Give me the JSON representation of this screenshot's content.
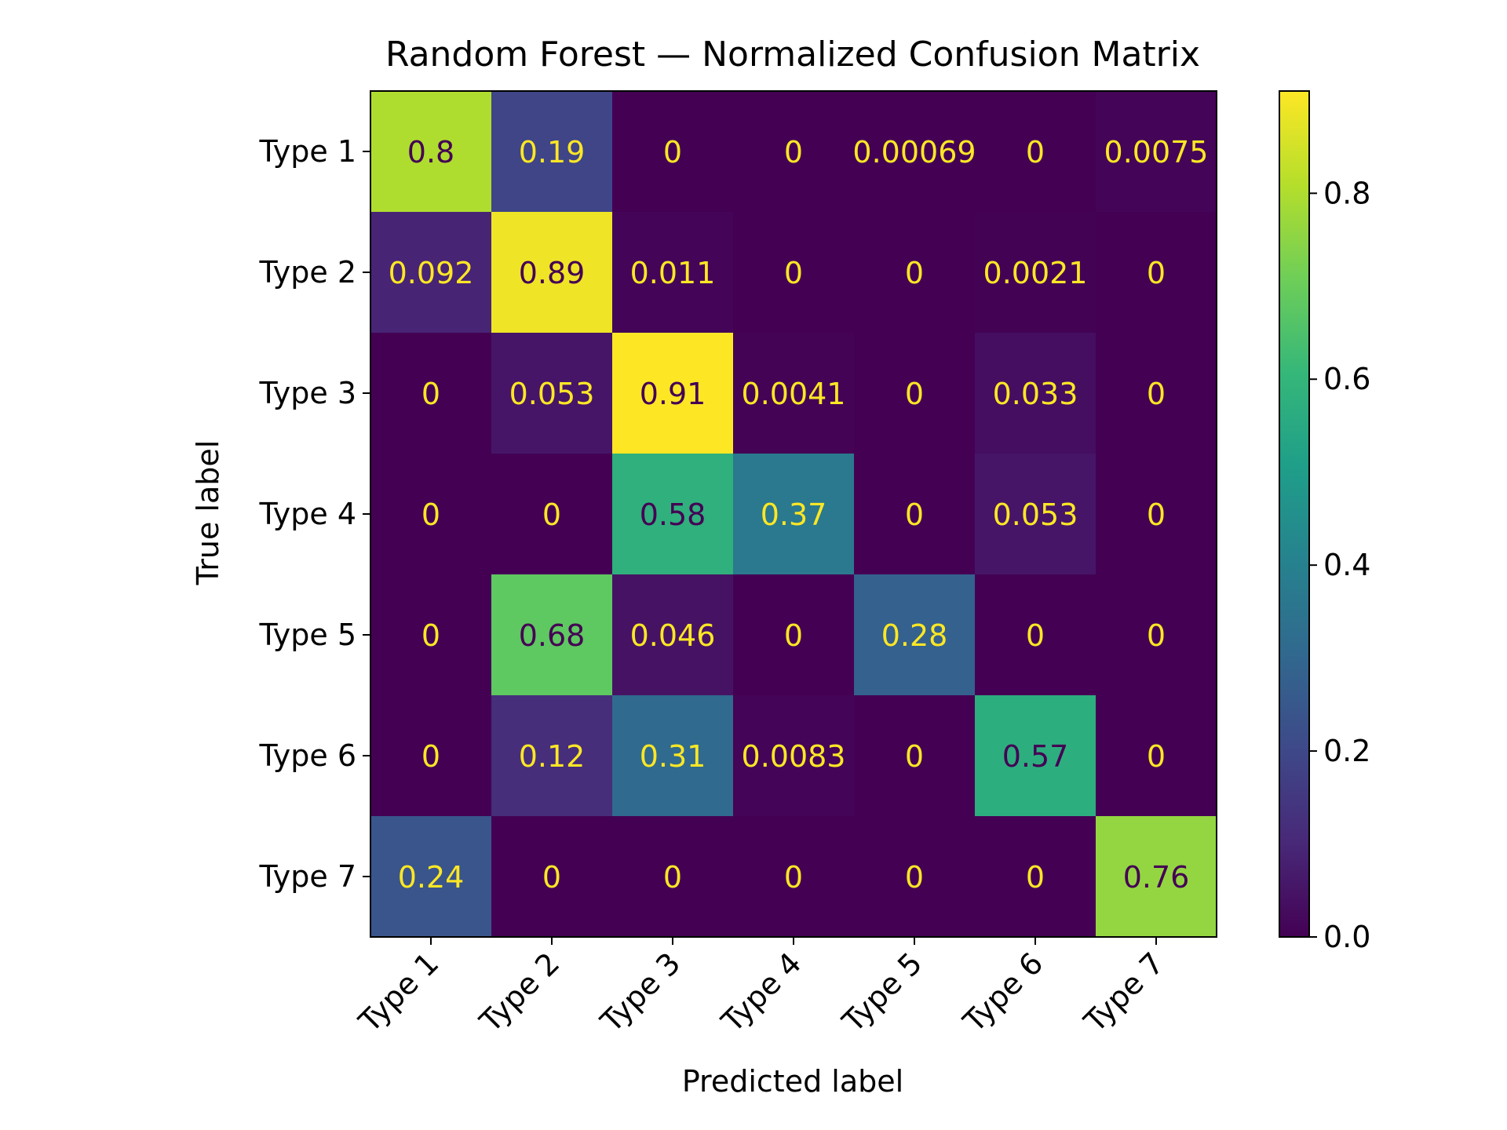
{
  "chart_data": {
    "type": "heatmap",
    "title": "Random Forest — Normalized Confusion Matrix",
    "xlabel": "Predicted label",
    "ylabel": "True label",
    "x_categories": [
      "Type 1",
      "Type 2",
      "Type 3",
      "Type 4",
      "Type 5",
      "Type 6",
      "Type 7"
    ],
    "y_categories": [
      "Type 1",
      "Type 2",
      "Type 3",
      "Type 4",
      "Type 5",
      "Type 6",
      "Type 7"
    ],
    "values": [
      [
        0.8,
        0.19,
        0,
        0,
        0.00069,
        0,
        0.0075
      ],
      [
        0.092,
        0.89,
        0.011,
        0,
        0,
        0.0021,
        0
      ],
      [
        0,
        0.053,
        0.91,
        0.0041,
        0,
        0.033,
        0
      ],
      [
        0,
        0,
        0.58,
        0.37,
        0,
        0.053,
        0
      ],
      [
        0,
        0.68,
        0.046,
        0,
        0.28,
        0,
        0
      ],
      [
        0,
        0.12,
        0.31,
        0.0083,
        0,
        0.57,
        0
      ],
      [
        0.24,
        0,
        0,
        0,
        0,
        0,
        0.76
      ]
    ],
    "colormap": "viridis",
    "colorbar_range": [
      0,
      0.91
    ],
    "colorbar_ticks": [
      "0.0",
      "0.2",
      "0.4",
      "0.6",
      "0.8"
    ],
    "annotation_colors": {
      "light": "#fde725",
      "dark": "#440154"
    }
  }
}
